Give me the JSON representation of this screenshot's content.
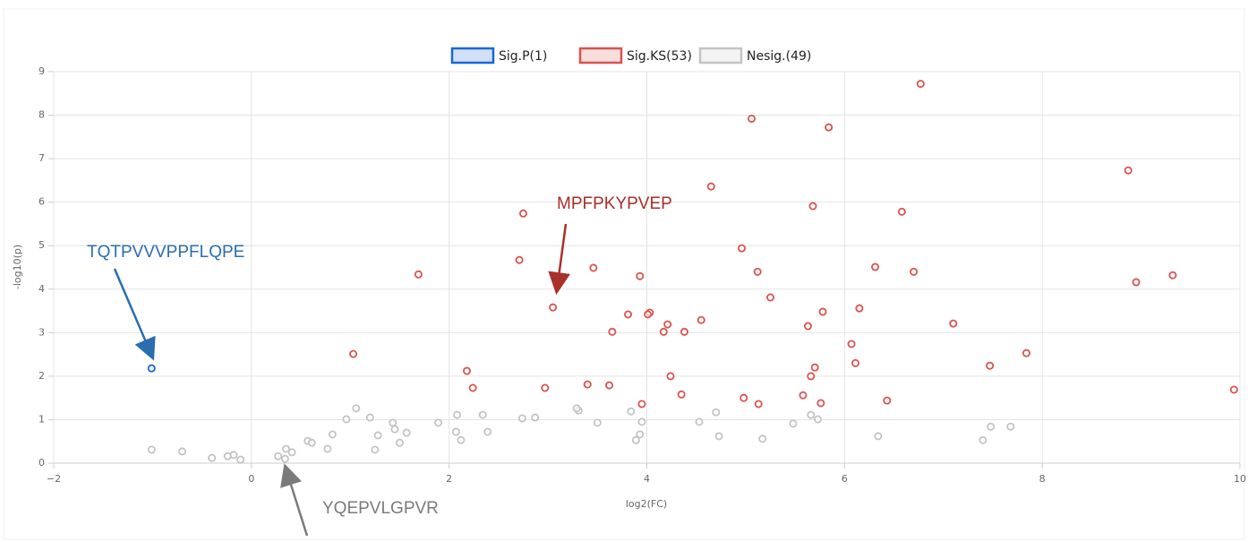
{
  "chart_data": {
    "type": "scatter",
    "x_label": "log2(FC)",
    "y_label": "-log10(p)",
    "xlim": [
      -2,
      10
    ],
    "xticks": [
      {
        "value": -2,
        "label": "−2"
      },
      0,
      2,
      4,
      6,
      8,
      10
    ],
    "ylim": [
      0,
      9
    ],
    "yticks": [
      0,
      1,
      2,
      3,
      4,
      5,
      6,
      7,
      8,
      9
    ],
    "grid": true,
    "legend": "top",
    "series": [
      {
        "name": "Sig.P(1)",
        "color": "#1a66d9",
        "x": [
          -1.01
        ],
        "values": [
          2.18
        ]
      },
      {
        "name": "Sig.KS(53)",
        "color": "#d9534f",
        "x": [
          6.77,
          5.06,
          5.84,
          8.87,
          4.65,
          5.68,
          2.75,
          6.58,
          4.96,
          2.71,
          6.31,
          3.46,
          5.12,
          6.7,
          1.69,
          9.32,
          3.93,
          8.95,
          5.25,
          3.05,
          6.15,
          5.78,
          4.03,
          4.01,
          3.81,
          4.55,
          4.21,
          7.1,
          5.63,
          3.65,
          4.17,
          4.38,
          6.07,
          1.03,
          7.84,
          6.11,
          5.7,
          7.47,
          2.18,
          4.24,
          5.66,
          3.4,
          3.62,
          2.24,
          2.97,
          9.94,
          4.35,
          5.58,
          4.98,
          6.43,
          3.95,
          5.13,
          5.76
        ],
        "values": [
          8.72,
          7.92,
          7.72,
          6.73,
          6.36,
          5.91,
          5.74,
          5.78,
          4.94,
          4.67,
          4.51,
          4.49,
          4.4,
          4.4,
          4.34,
          4.32,
          4.3,
          4.16,
          3.81,
          3.58,
          3.56,
          3.48,
          3.46,
          3.42,
          3.42,
          3.29,
          3.19,
          3.21,
          3.15,
          3.02,
          3.02,
          3.02,
          2.74,
          2.51,
          2.53,
          2.3,
          2.2,
          2.24,
          2.12,
          2.0,
          2.0,
          1.81,
          1.79,
          1.73,
          1.73,
          1.69,
          1.58,
          1.56,
          1.5,
          1.44,
          1.36,
          1.36,
          1.38
        ]
      },
      {
        "name": "Nesig.(49)",
        "color": "#c4c4c4",
        "x": [
          -1.01,
          -0.7,
          -0.4,
          -0.24,
          -0.18,
          -0.11,
          0.27,
          0.34,
          0.35,
          0.41,
          0.57,
          0.61,
          0.77,
          0.82,
          0.96,
          1.06,
          1.2,
          1.25,
          1.28,
          1.43,
          1.45,
          1.5,
          1.57,
          1.89,
          2.07,
          2.08,
          2.12,
          2.34,
          2.39,
          2.74,
          2.87,
          3.31,
          3.29,
          3.5,
          3.84,
          3.89,
          3.93,
          3.95,
          4.53,
          4.7,
          4.73,
          5.17,
          5.48,
          5.66,
          5.73,
          6.34,
          7.4,
          7.48,
          7.68
        ],
        "values": [
          0.31,
          0.27,
          0.12,
          0.16,
          0.19,
          0.08,
          0.16,
          0.1,
          0.33,
          0.25,
          0.51,
          0.47,
          0.33,
          0.66,
          1.01,
          1.26,
          1.05,
          0.31,
          0.64,
          0.93,
          0.78,
          0.47,
          0.7,
          0.93,
          0.72,
          1.11,
          0.53,
          1.11,
          0.72,
          1.03,
          1.05,
          1.21,
          1.26,
          0.93,
          1.19,
          0.53,
          0.66,
          0.95,
          0.95,
          1.17,
          0.62,
          0.56,
          0.91,
          1.11,
          1.01,
          0.62,
          0.53,
          0.84,
          0.84
        ]
      }
    ],
    "annotations": [
      {
        "text": "TQTPVVVPPFLQPE",
        "color": "#2a6db0"
      },
      {
        "text": "MPFPKYPVEP",
        "color": "#a8302a"
      },
      {
        "text": "YQEPVLGPVR",
        "color": "#7a7a7a"
      }
    ]
  }
}
